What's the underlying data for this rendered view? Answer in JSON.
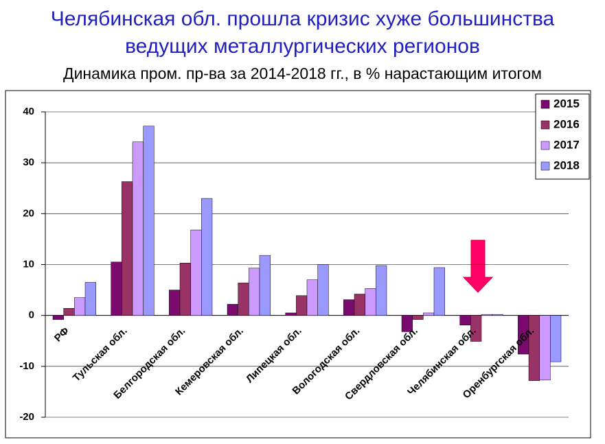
{
  "chart_data": {
    "type": "bar",
    "title": "Челябинская обл. прошла кризис хуже большинства ведущих металлургических регионов",
    "subtitle": "Динамика пром. пр-ва за 2014-2018 гг., в % нарастающим итогом",
    "categories": [
      "РФ",
      "Тульская обл.",
      "Белгородская обл.",
      "Кемеровская обл.",
      "Липецкая обл.",
      "Вологодская обл.",
      "Свердловская обл.",
      "Челябинская обл.",
      "Оренбургская обл."
    ],
    "series": [
      {
        "name": "2015",
        "color": "#7a0a6e",
        "values": [
          -0.8,
          10.5,
          5.0,
          2.2,
          0.5,
          3.1,
          -3.2,
          -1.9,
          -7.6
        ]
      },
      {
        "name": "2016",
        "color": "#993366",
        "values": [
          1.4,
          26.3,
          10.3,
          6.4,
          3.9,
          4.2,
          -0.8,
          -5.1,
          -12.8
        ]
      },
      {
        "name": "2017",
        "color": "#cc99ff",
        "values": [
          3.5,
          34.1,
          16.8,
          9.3,
          7.0,
          5.3,
          0.5,
          0.2,
          -12.7
        ]
      },
      {
        "name": "2018",
        "color": "#9999ff",
        "values": [
          6.5,
          37.2,
          23.0,
          11.8,
          10.0,
          9.8,
          9.4,
          0.2,
          -9.1
        ]
      }
    ],
    "ylim": [
      -20,
      40
    ],
    "yticks": [
      -20,
      -10,
      0,
      10,
      20,
      30,
      40
    ],
    "grid": true,
    "legend": "top-right"
  }
}
